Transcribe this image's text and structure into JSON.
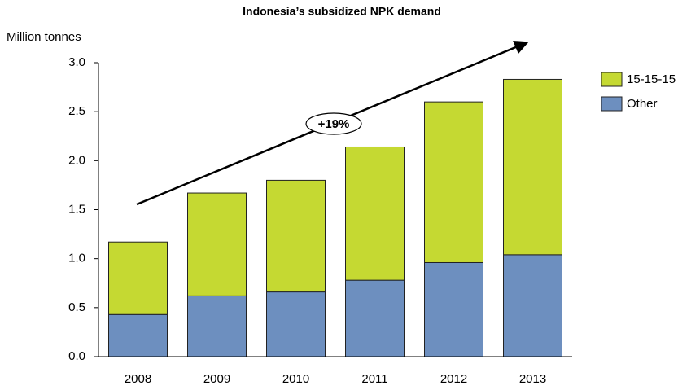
{
  "chart_data": {
    "type": "stacked_bar",
    "title": "Indonesia’s subsidized NPK demand",
    "y_label": "Million tonnes",
    "categories": [
      "2008",
      "2009",
      "2010",
      "2011",
      "2012",
      "2013"
    ],
    "series": [
      {
        "name": "Other",
        "color": "#6d8fbf",
        "values": [
          0.43,
          0.62,
          0.66,
          0.78,
          0.96,
          1.04
        ]
      },
      {
        "name": "15-15-15",
        "color": "#c5d932",
        "values": [
          0.74,
          1.05,
          1.14,
          1.36,
          1.64,
          1.79
        ]
      }
    ],
    "ylim": [
      0,
      3
    ],
    "yticks": [
      {
        "value": 0,
        "label": "0.0"
      },
      0.5,
      {
        "value": 1,
        "label": "1.0"
      },
      1.5,
      {
        "value": 2,
        "label": "2.0"
      },
      2.5,
      {
        "value": 3,
        "label": "3.0"
      }
    ],
    "annotations": [
      "+19%"
    ],
    "legend": "right"
  }
}
